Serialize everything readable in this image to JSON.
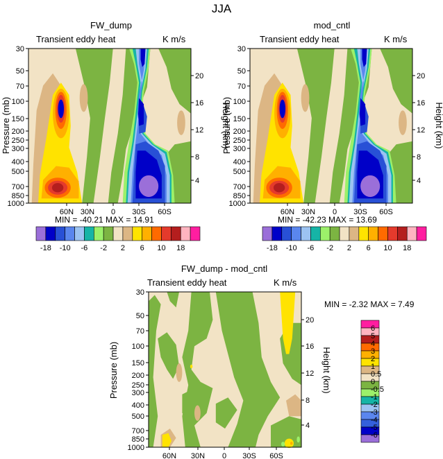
{
  "figure": {
    "title": "JJA"
  },
  "colors": {
    "top": [
      "#9b6fd9",
      "#0000c8",
      "#2850d6",
      "#5a86ee",
      "#9cc3f2",
      "#16b4a6",
      "#9cf06a",
      "#7cb442",
      "#f2e3c5",
      "#dcb684",
      "#ffe300",
      "#ffb000",
      "#ff6a00",
      "#e43a2c",
      "#b41e1e",
      "#ffb4c0",
      "#ff1ea0"
    ],
    "bottom": [
      "#9b6fd9",
      "#0000c8",
      "#3460dc",
      "#5a86ee",
      "#9cc3f2",
      "#16b4a6",
      "#9cf06a",
      "#7cb442",
      "#f2e3c5",
      "#dcb684",
      "#ffe300",
      "#ffb000",
      "#ff6a00",
      "#b41e1e",
      "#ffb4c0",
      "#ff1ea0"
    ]
  },
  "chart_data": [
    {
      "type": "heatmap",
      "title": "FW_dump",
      "subtitle_left": "Transient eddy heat",
      "subtitle_right": "K m/s",
      "ylabel": "Pressure (mb)",
      "ylabel_right": "Height (km)",
      "yticks": [
        30,
        50,
        70,
        100,
        150,
        200,
        250,
        300,
        400,
        500,
        700,
        850,
        1000
      ],
      "yticks_right": [
        20,
        16,
        12,
        8,
        4
      ],
      "xticks": [
        "60N",
        "30N",
        "0",
        "30S",
        "60S"
      ],
      "stats": "MIN = -40.21   MAX = 14.91",
      "levels": [
        -18,
        -10,
        -6,
        -2,
        2,
        6,
        10,
        18
      ],
      "levels_all": [
        -18,
        -14,
        -10,
        -8,
        -6,
        -4,
        -2,
        -1,
        1,
        2,
        4,
        6,
        8,
        10,
        14,
        18
      ]
    },
    {
      "type": "heatmap",
      "title": "mod_cntl",
      "subtitle_left": "Transient eddy heat",
      "subtitle_right": "K m/s",
      "ylabel": "Pressure (mb)",
      "ylabel_right": "Height (km)",
      "yticks": [
        30,
        50,
        70,
        100,
        150,
        200,
        250,
        300,
        400,
        500,
        700,
        850,
        1000
      ],
      "yticks_right": [
        20,
        16,
        12,
        8,
        4
      ],
      "xticks": [
        "60N",
        "30N",
        "0",
        "30S",
        "60S"
      ],
      "stats": "MIN = -42.23   MAX = 13.69",
      "levels": [
        -18,
        -10,
        -6,
        -2,
        2,
        6,
        10,
        18
      ],
      "levels_all": [
        -18,
        -14,
        -10,
        -8,
        -6,
        -4,
        -2,
        -1,
        1,
        2,
        4,
        6,
        8,
        10,
        14,
        18
      ]
    },
    {
      "type": "heatmap",
      "title": "FW_dump - mod_cntl",
      "subtitle_left": "Transient eddy heat",
      "subtitle_right": "K m/s",
      "ylabel": "Pressure (mb)",
      "ylabel_right": "Height (km)",
      "yticks": [
        30,
        50,
        70,
        100,
        150,
        200,
        250,
        300,
        400,
        500,
        700,
        850,
        1000
      ],
      "yticks_right": [
        20,
        16,
        12,
        8,
        4
      ],
      "xticks": [
        "60N",
        "30N",
        "0",
        "30S",
        "60S"
      ],
      "stats": "MIN = -2.32   MAX =  7.49",
      "levels": [
        "6",
        "5",
        "4",
        "3",
        "2",
        "1",
        "0.5",
        "0",
        "-0.5",
        "-1",
        "-2",
        "-3",
        "-4",
        "-5",
        "-6"
      ]
    }
  ]
}
